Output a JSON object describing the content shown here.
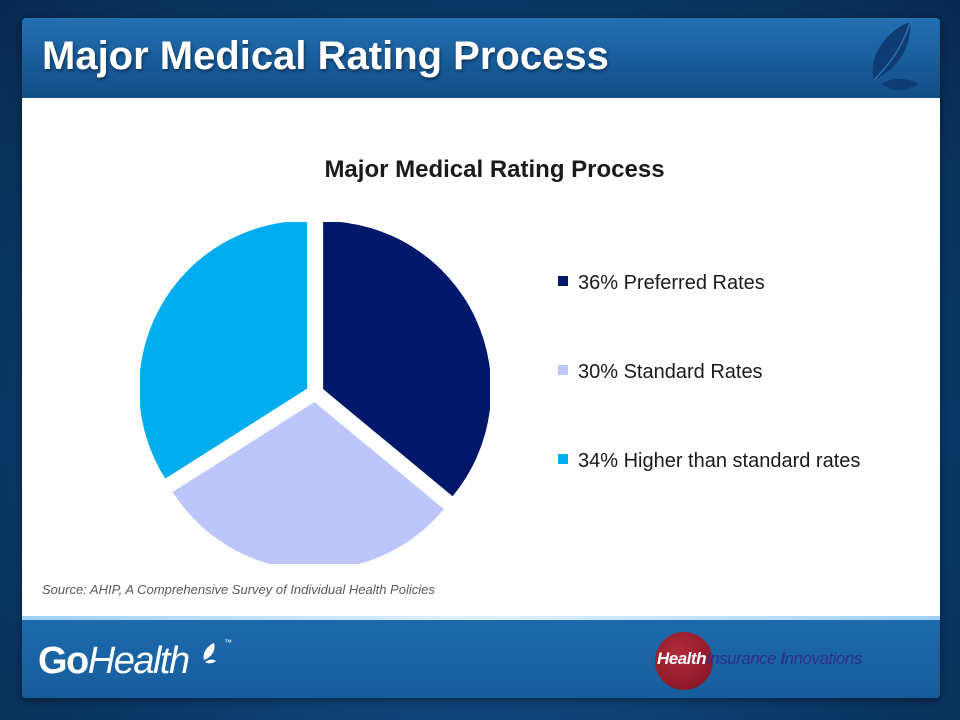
{
  "slide": {
    "title": "Major Medical Rating Process",
    "source": "Source: AHIP, A Comprehensive Survey of Individual Health Policies"
  },
  "chart_data": {
    "type": "pie",
    "title": "Major Medical Rating Process",
    "categories": [
      "36% Preferred Rates",
      "30% Standard Rates",
      "34% Higher than standard rates"
    ],
    "values": [
      36,
      30,
      34
    ],
    "colors": [
      "#00176a",
      "#bcc6fa",
      "#00aeef"
    ],
    "exploded": true,
    "legend_position": "right"
  },
  "footer": {
    "gohealth_logo": {
      "go": "Go",
      "health": "Health",
      "tm": "™"
    },
    "partner_logo": {
      "health": "Health",
      "insurance": "Insurance ",
      "i": "I",
      "nnovations": "nnovations"
    }
  },
  "colors": {
    "header": "#175a98",
    "background": "#0b3a6b",
    "logo_red": "#8e1a29",
    "logo_navy": "#2c2f8c"
  },
  "icons": {
    "header_logo": "leaf-icon",
    "gohealth_mark": "leaf-icon"
  }
}
